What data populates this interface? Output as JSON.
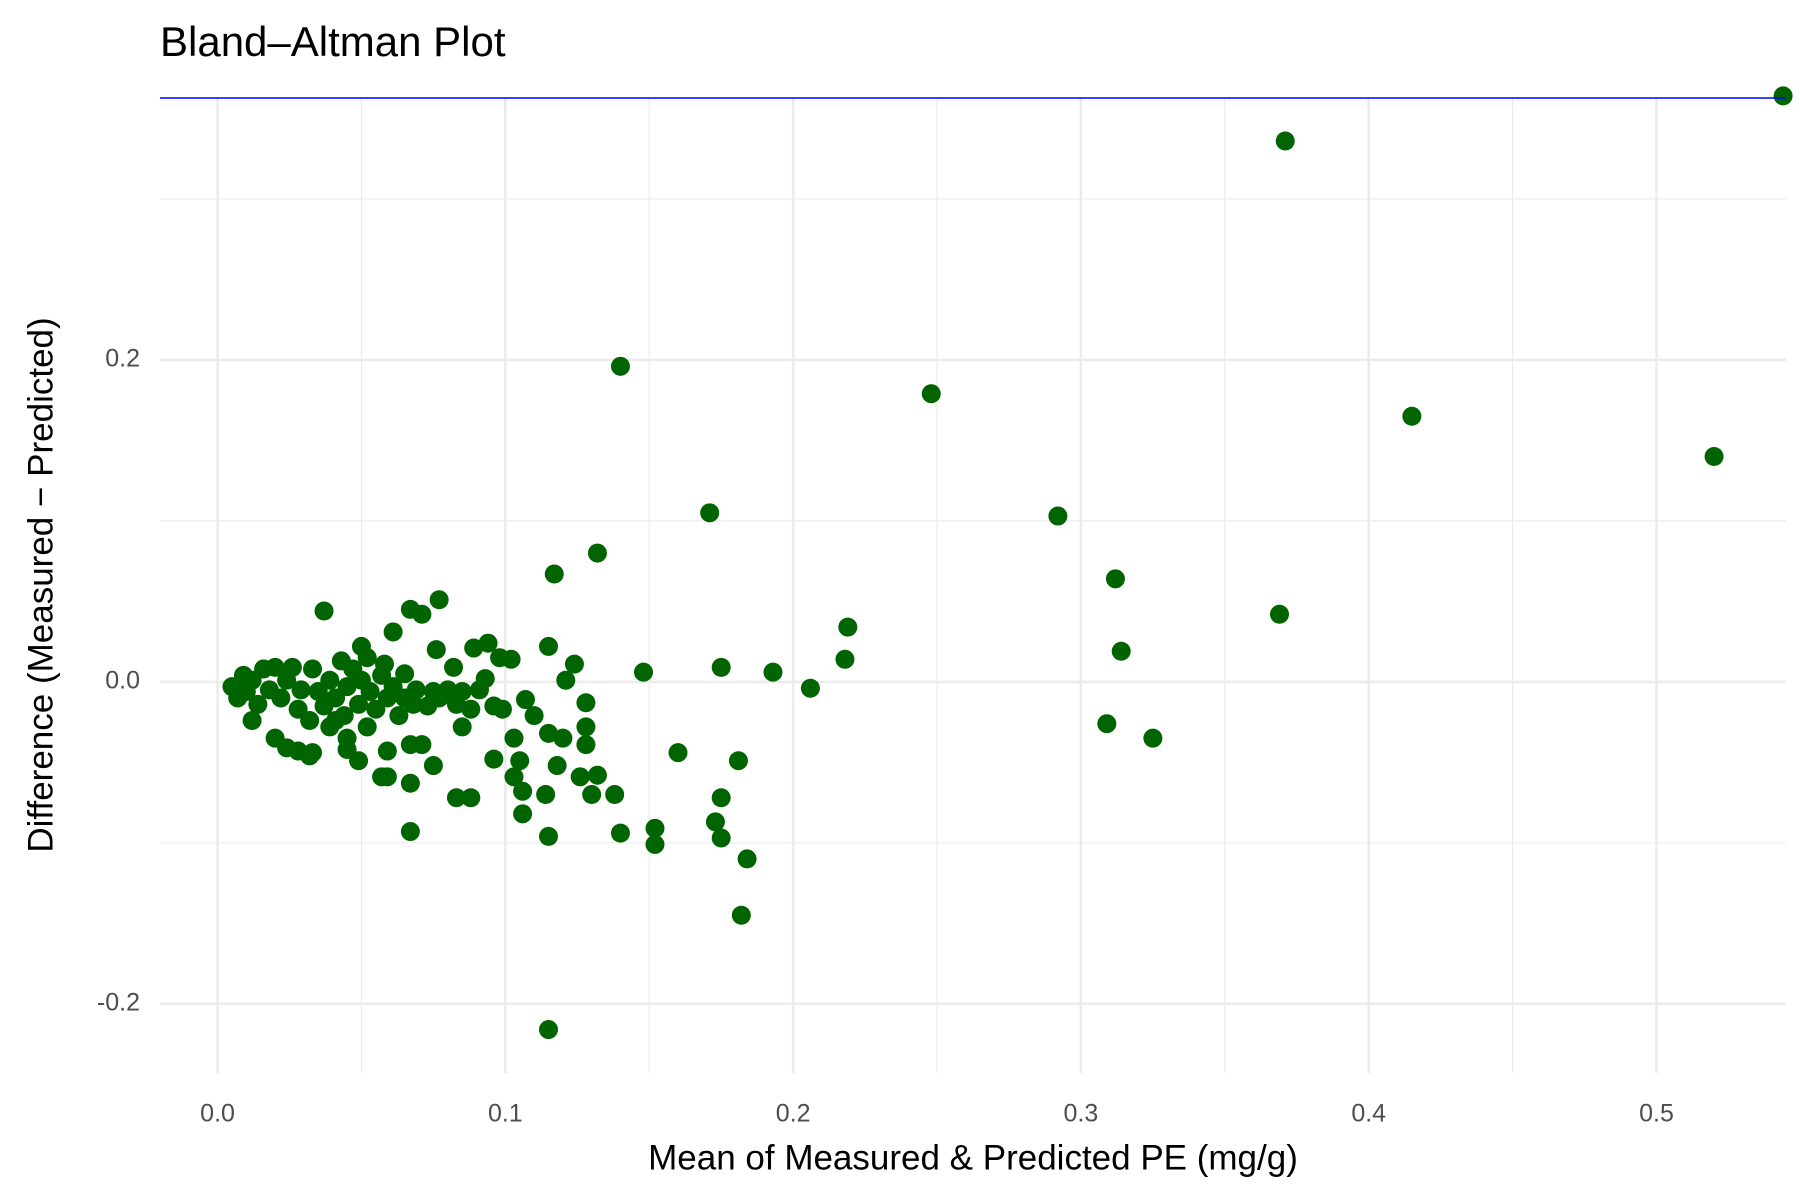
{
  "chart_data": {
    "type": "scatter",
    "title": "Bland–Altman Plot",
    "x_label": "Mean of Measured & Predicted PE (mg/g)",
    "y_label": "Difference (Measured − Predicted)",
    "color": "#006400",
    "xlim": [
      -0.02,
      0.545
    ],
    "ylim": [
      -0.243,
      0.3627
    ],
    "xticks": [
      {
        "value": 0,
        "label": "0.0"
      },
      0.1,
      0.2,
      0.3,
      0.4,
      0.5
    ],
    "yticks": [
      {
        "value": -0.2,
        "label": "-0.2"
      },
      {
        "value": 0,
        "label": "0.0"
      },
      0.2
    ],
    "x_minor_ticks": [
      0.05,
      0.15,
      0.25,
      0.35,
      0.45
    ],
    "y_minor_ticks": [
      -0.1,
      0.1,
      0.3
    ],
    "grid": true,
    "reference_lines": [
      {
        "value": 0.3627,
        "color": "#0000ff"
      }
    ],
    "x": [
      0.544,
      0.371,
      0.14,
      0.248,
      0.415,
      0.52,
      0.171,
      0.292,
      0.132,
      0.117,
      0.312,
      0.369,
      0.219,
      0.218,
      0.314,
      0.175,
      0.148,
      0.193,
      0.206,
      0.309,
      0.325,
      0.16,
      0.181,
      0.175,
      0.173,
      0.175,
      0.184,
      0.182,
      0.115,
      0.152,
      0.152,
      0.14,
      0.138,
      0.132,
      0.126,
      0.13,
      0.128,
      0.128,
      0.128,
      0.124,
      0.121,
      0.115,
      0.115,
      0.12,
      0.118,
      0.115,
      0.114,
      0.106,
      0.106,
      0.105,
      0.103,
      0.103,
      0.11,
      0.107,
      0.102,
      0.098,
      0.094,
      0.089,
      0.096,
      0.088,
      0.083,
      0.085,
      0.082,
      0.077,
      0.076,
      0.071,
      0.067,
      0.075,
      0.071,
      0.067,
      0.067,
      0.067,
      0.065,
      0.061,
      0.059,
      0.057,
      0.059,
      0.058,
      0.049,
      0.05,
      0.037,
      0.033,
      0.028,
      0.024,
      0.02,
      0.012,
      0.005,
      0.007,
      0.009,
      0.01,
      0.012,
      0.014,
      0.016,
      0.018,
      0.02,
      0.022,
      0.024,
      0.026,
      0.028,
      0.029,
      0.032,
      0.033,
      0.035,
      0.037,
      0.039,
      0.041,
      0.043,
      0.044,
      0.045,
      0.047,
      0.049,
      0.05,
      0.052,
      0.053,
      0.055,
      0.057,
      0.059,
      0.061,
      0.063,
      0.065,
      0.068,
      0.069,
      0.073,
      0.075,
      0.077,
      0.08,
      0.083,
      0.085,
      0.088,
      0.091,
      0.093,
      0.096,
      0.099,
      0.045,
      0.041,
      0.052,
      0.039,
      0.032,
      0.045
    ],
    "y": [
      0.364,
      0.336,
      0.196,
      0.179,
      0.165,
      0.14,
      0.105,
      0.103,
      0.08,
      0.067,
      0.064,
      0.042,
      0.034,
      0.014,
      0.019,
      0.009,
      0.006,
      0.006,
      -0.004,
      -0.026,
      -0.035,
      -0.044,
      -0.049,
      -0.072,
      -0.087,
      -0.097,
      -0.11,
      -0.145,
      -0.216,
      -0.091,
      -0.101,
      -0.094,
      -0.07,
      -0.058,
      -0.059,
      -0.07,
      -0.039,
      -0.028,
      -0.013,
      0.011,
      0.001,
      0.022,
      -0.032,
      -0.035,
      -0.052,
      -0.096,
      -0.07,
      -0.068,
      -0.082,
      -0.049,
      -0.035,
      -0.059,
      -0.021,
      -0.011,
      0.014,
      0.015,
      0.024,
      0.021,
      -0.048,
      -0.072,
      -0.072,
      -0.028,
      0.009,
      0.051,
      0.02,
      0.042,
      0.045,
      -0.052,
      -0.039,
      -0.039,
      -0.063,
      -0.093,
      0.005,
      0.031,
      -0.059,
      -0.059,
      -0.043,
      0.011,
      -0.049,
      0.022,
      0.044,
      -0.044,
      -0.043,
      -0.041,
      -0.035,
      -0.024,
      -0.003,
      -0.01,
      0.004,
      -0.006,
      0.001,
      -0.014,
      0.008,
      -0.005,
      0.009,
      -0.01,
      0.001,
      0.009,
      -0.017,
      -0.005,
      -0.024,
      0.008,
      -0.006,
      -0.015,
      0.001,
      -0.01,
      0.013,
      -0.021,
      -0.003,
      0.008,
      -0.014,
      0.001,
      0.015,
      -0.006,
      -0.017,
      0.004,
      -0.01,
      -0.003,
      -0.021,
      -0.01,
      -0.014,
      -0.005,
      -0.015,
      -0.006,
      -0.01,
      -0.005,
      -0.014,
      -0.006,
      -0.017,
      -0.005,
      0.002,
      -0.015,
      -0.017,
      -0.035,
      -0.024,
      -0.028,
      -0.028,
      -0.046,
      -0.042
    ]
  }
}
